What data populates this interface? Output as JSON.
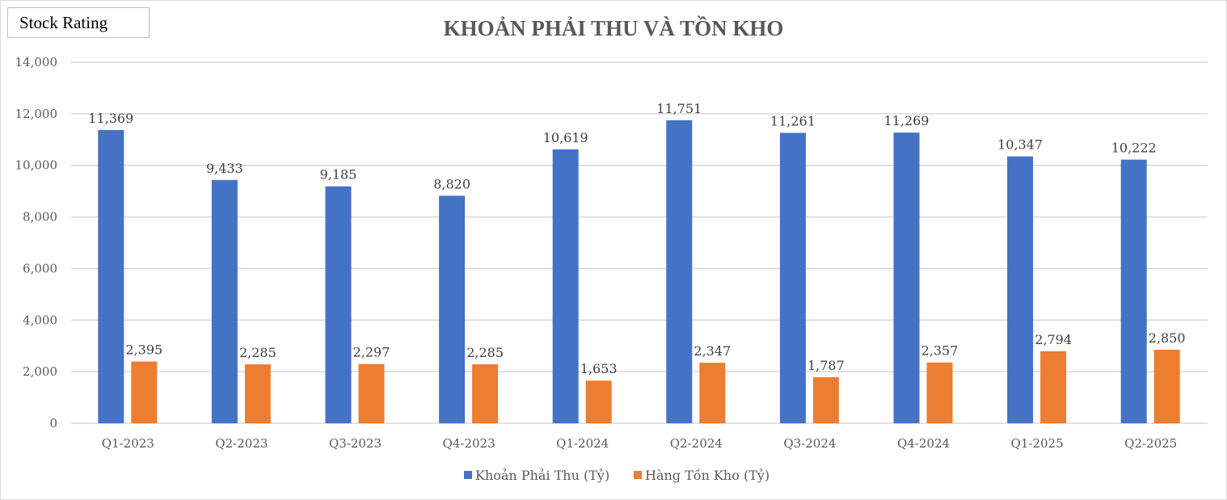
{
  "badge": "Stock Rating",
  "chart_data": {
    "type": "bar",
    "title": "KHOẢN PHẢI THU VÀ TỒN KHO",
    "xlabel": "",
    "ylabel": "",
    "ylim": [
      0,
      14000
    ],
    "yticks": [
      0,
      2000,
      4000,
      6000,
      8000,
      10000,
      12000,
      14000
    ],
    "ytick_labels": [
      "0",
      "2,000",
      "4,000",
      "6,000",
      "8,000",
      "10,000",
      "12,000",
      "14,000"
    ],
    "grid": true,
    "legend_position": "bottom",
    "categories": [
      "Q1-2023",
      "Q2-2023",
      "Q3-2023",
      "Q4-2023",
      "Q1-2024",
      "Q2-2024",
      "Q3-2024",
      "Q4-2024",
      "Q1-2025",
      "Q2-2025"
    ],
    "series": [
      {
        "name": "Khoản Phải Thu (Tỷ)",
        "color": "#4472c4",
        "values": [
          11369,
          9433,
          9185,
          8820,
          10619,
          11751,
          11261,
          11269,
          10347,
          10222
        ],
        "labels": [
          "11,369",
          "9,433",
          "9,185",
          "8,820",
          "10,619",
          "11,751",
          "11,261",
          "11,269",
          "10,347",
          "10,222"
        ]
      },
      {
        "name": "Hàng Tồn Kho (Tỷ)",
        "color": "#ed7d31",
        "values": [
          2395,
          2285,
          2297,
          2285,
          1653,
          2347,
          1787,
          2357,
          2794,
          2850
        ],
        "labels": [
          "2,395",
          "2,285",
          "2,297",
          "2,285",
          "1,653",
          "2,347",
          "1,787",
          "2,357",
          "2,794",
          "2,850"
        ]
      }
    ]
  }
}
